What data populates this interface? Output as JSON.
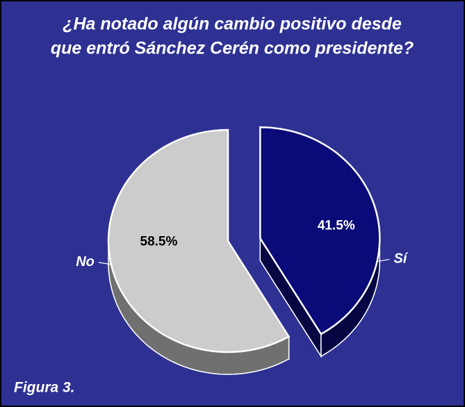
{
  "chart_data": {
    "type": "pie",
    "title": [
      "¿Ha notado algún cambio positivo desde",
      "que entró Sánchez Cerén como presidente?"
    ],
    "categories": [
      "Sí",
      "No"
    ],
    "values": [
      41.5,
      58.5
    ],
    "value_labels": [
      "41.5%",
      "58.5%"
    ],
    "colors": [
      "#0a0a78",
      "#cccccc"
    ],
    "caption": "Figura 3."
  }
}
